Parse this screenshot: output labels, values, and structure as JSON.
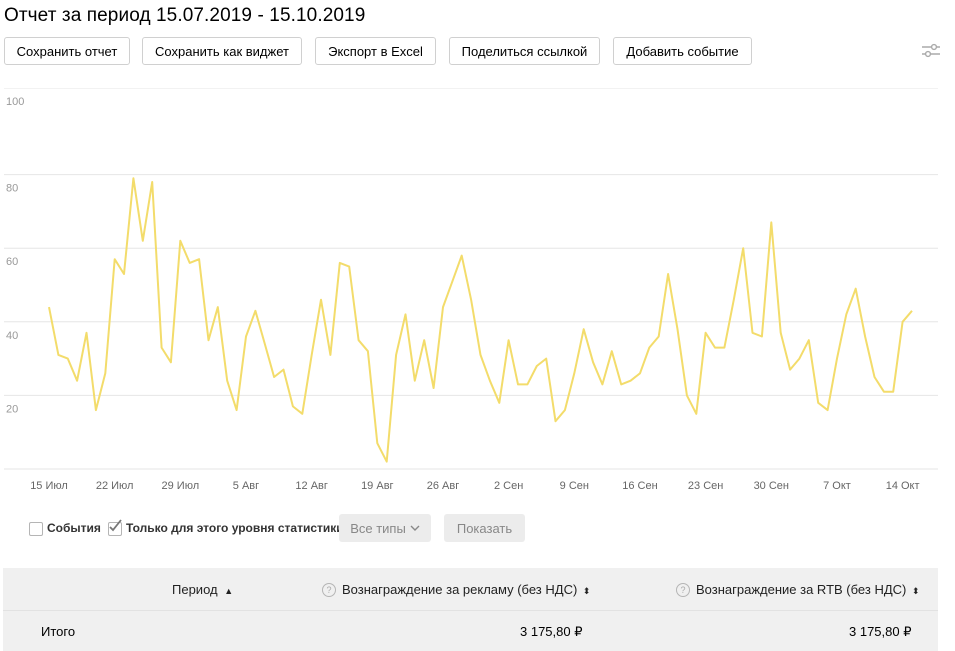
{
  "header": {
    "title": "Отчет за период 15.07.2019 - 15.10.2019"
  },
  "toolbar": {
    "save_report": "Сохранить отчет",
    "save_widget": "Сохранить как виджет",
    "export_excel": "Экспорт в Excel",
    "share_link": "Поделиться ссылкой",
    "add_event": "Добавить событие",
    "settings_icon": "sliders-icon"
  },
  "chart_data": {
    "type": "line",
    "ylim": [
      0,
      100
    ],
    "y_ticks": [
      "100",
      "80",
      "60",
      "40",
      "20"
    ],
    "x_tick_labels": [
      "15 Июл",
      "22 Июл",
      "29 Июл",
      "5 Авг",
      "12 Авг",
      "19 Авг",
      "26 Авг",
      "2 Сен",
      "9 Сен",
      "16 Сен",
      "23 Сен",
      "30 Сен",
      "7 Окт",
      "14 Окт"
    ],
    "x_start": "15.07.2019",
    "x_end": "14.10.2019",
    "color": "#f3dc6b",
    "values": [
      44,
      31,
      30,
      24,
      37,
      16,
      26,
      57,
      53,
      79,
      62,
      78,
      33,
      29,
      62,
      56,
      57,
      35,
      44,
      24,
      16,
      36,
      43,
      34,
      25,
      27,
      17,
      15,
      31,
      46,
      31,
      56,
      55,
      35,
      32,
      7,
      2,
      31,
      42,
      24,
      35,
      22,
      44,
      51,
      58,
      46,
      31,
      24,
      18,
      35,
      23,
      23,
      28,
      30,
      13,
      16,
      26,
      38,
      29,
      23,
      32,
      23,
      24,
      26,
      33,
      36,
      53,
      38,
      20,
      15,
      37,
      33,
      33,
      46,
      60,
      37,
      36,
      67,
      37,
      27,
      30,
      35,
      18,
      16,
      30,
      42,
      49,
      36,
      25,
      21,
      21,
      40,
      43
    ]
  },
  "filters": {
    "events_label": "События",
    "this_level_label": "Только для этого уровня статистики",
    "all_types_label": "Все типы",
    "show_label": "Показать"
  },
  "table": {
    "headers": {
      "period": "Период",
      "ad_reward": "Вознаграждение за рекламу (без НДС)",
      "rtb_reward": "Вознаграждение за RTB (без НДС)"
    },
    "total_row": {
      "label": "Итого",
      "ad_reward": "3 175,80 ₽",
      "rtb_reward": "3 175,80 ₽"
    }
  }
}
